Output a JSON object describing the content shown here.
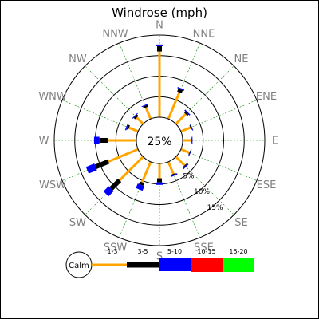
{
  "chart_data": {
    "type": "windrose",
    "title": "Windrose (mph)",
    "calm_label": "Calm",
    "calm_percent_label": "25%",
    "directions": [
      "N",
      "NNE",
      "NE",
      "ENE",
      "E",
      "ESE",
      "SE",
      "SSE",
      "S",
      "SSW",
      "SW",
      "WSW",
      "W",
      "WNW",
      "NW",
      "NNW"
    ],
    "radial_ticks": [
      5,
      10,
      15
    ],
    "radial_tick_labels": [
      "5%",
      "10%",
      "15%"
    ],
    "radial_max": 20,
    "speed_bins": [
      {
        "label": "1-3",
        "color": "#FFA500"
      },
      {
        "label": "3-5",
        "color": "#000000"
      },
      {
        "label": "5-10",
        "color": "#0000FF"
      },
      {
        "label": "10-15",
        "color": "#FF0000"
      },
      {
        "label": "15-20",
        "color": "#00FF00"
      }
    ],
    "segment_widths": [
      3,
      6,
      9,
      12,
      12
    ],
    "values": [
      [
        16.0,
        1.3,
        0.4,
        0,
        0
      ],
      [
        7.0,
        0.8,
        0.3,
        0,
        0
      ],
      [
        3.4,
        0.4,
        0.3,
        0,
        0
      ],
      [
        2.5,
        0.2,
        0.2,
        0,
        0
      ],
      [
        2.1,
        0.1,
        0.2,
        0,
        0
      ],
      [
        2.2,
        0.1,
        0.2,
        0,
        0
      ],
      [
        3.0,
        0.2,
        0.3,
        0,
        0
      ],
      [
        3.2,
        0.2,
        0.3,
        0,
        0
      ],
      [
        3.6,
        1.0,
        0.6,
        0,
        0
      ],
      [
        5.4,
        0.7,
        1.2,
        0,
        0
      ],
      [
        8.1,
        2.9,
        1.8,
        0,
        0
      ],
      [
        7.8,
        3.4,
        2.2,
        0,
        0
      ],
      [
        7.0,
        2.0,
        1.3,
        0,
        0
      ],
      [
        2.4,
        0.4,
        0.3,
        0,
        0
      ],
      [
        2.2,
        0.5,
        0.2,
        0,
        0
      ],
      [
        3.0,
        0.5,
        0.2,
        0,
        0
      ]
    ],
    "colors": {
      "grid_circle": "#000000",
      "spoke": "#008000",
      "direction_label": "#808080",
      "frame": "#000000"
    }
  }
}
